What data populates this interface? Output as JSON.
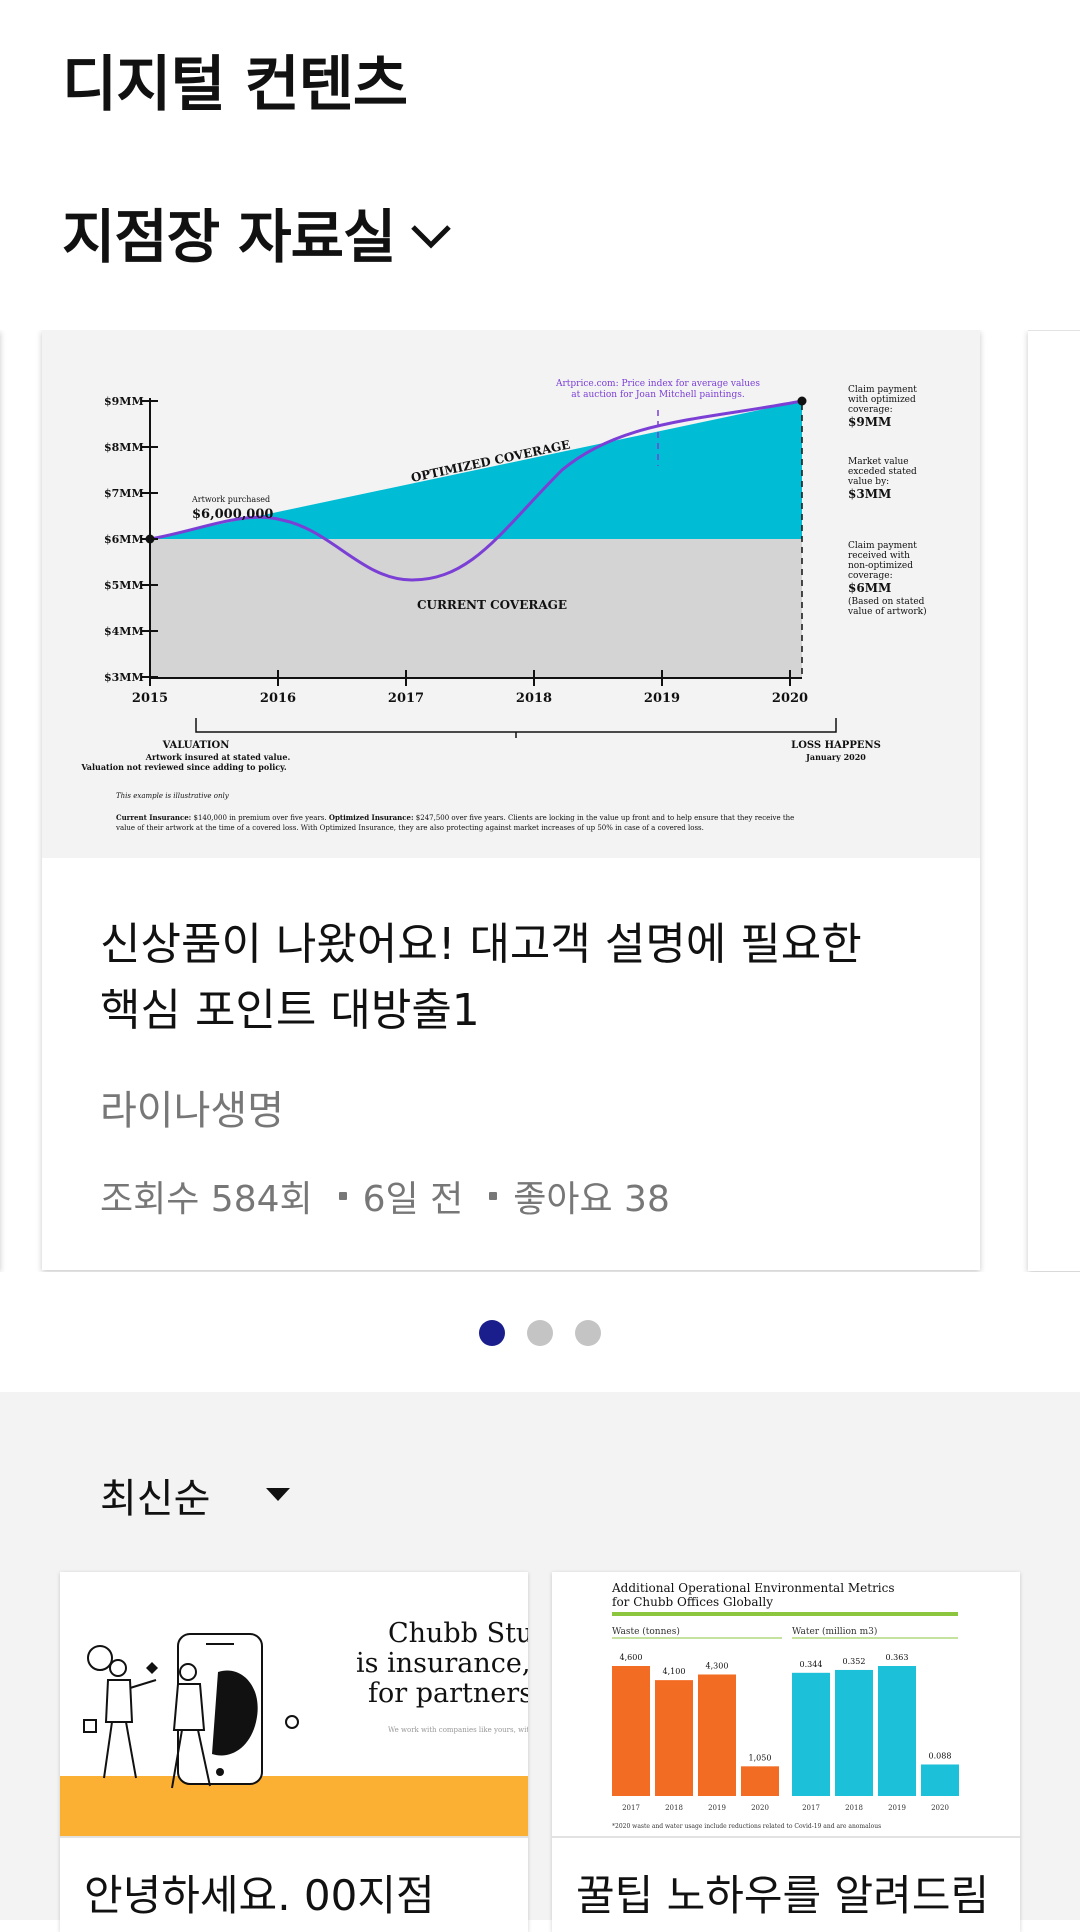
{
  "header": {
    "title": "디지털 컨텐츠"
  },
  "section": {
    "title": "지점장 자료실",
    "toggle_icon": "chevron-down-icon"
  },
  "featured": {
    "title_line1": "신상품이 나왔어요! 대고객 설명에 필요한",
    "title_line2": "핵심 포인트 대방출1",
    "org": "라이나생명",
    "views": "조회수 584회",
    "age": "6일 전",
    "likes": "좋아요 38",
    "chart": {
      "y_ticks": [
        "$9MM",
        "$8MM",
        "$7MM",
        "$6MM",
        "$5MM",
        "$4MM",
        "$3MM"
      ],
      "x_ticks": [
        "2015",
        "2016",
        "2017",
        "2018",
        "2019",
        "2020"
      ],
      "optimized_label": "OPTIMIZED COVERAGE",
      "current_label": "CURRENT COVERAGE",
      "purchase_note": "Artwork purchased",
      "purchase_value": "$6,000,000",
      "artprice_line1": "Artprice.com: Price index for average values",
      "artprice_line2": "at auction for Joan Mitchell paintings.",
      "r1_l1": "Claim payment",
      "r1_l2": "with optimized",
      "r1_l3": "coverage:",
      "r1_val": "$9MM",
      "r2_l1": "Market value",
      "r2_l2": "exceded stated",
      "r2_l3": "value by:",
      "r2_val": "$3MM",
      "r3_l1": "Claim payment",
      "r3_l2": "received with",
      "r3_l3": "non-optimized",
      "r3_l4": "coverage:",
      "r3_val": "$6MM",
      "r3_n1": "(Based on stated",
      "r3_n2": "value of artwork)",
      "valuation_title": "VALUATION",
      "valuation_l1": "Artwork insured at stated value.",
      "valuation_l2": "Valuation not reviewed since adding to policy.",
      "loss_title": "LOSS HAPPENS",
      "loss_date": "January 2020",
      "illustrative": "This example is illustrative only",
      "foot_bold1": "Current Insurance:",
      "foot_t1": " $140,000 in premium over five years. ",
      "foot_bold2": "Optimized Insurance:",
      "foot_t2": " $247,500 over five years. Clients are locking in the value up front and to help ensure that they receive the",
      "foot_line2": "value of their artwork at the time of a covered loss. With Optimized Insurance, they are also protecting against market increases of up 50% in case of a covered loss."
    }
  },
  "pagination": {
    "count": 3,
    "active_index": 0,
    "active_color": "#1a1e8c"
  },
  "sort": {
    "label": "최신순"
  },
  "grid": [
    {
      "title": "안녕하세요. 00지점",
      "thumb_line1": "Chubb Stud",
      "thumb_line2": "is insurance, r",
      "thumb_line3": "for partnersh",
      "thumb_small": "We work with companies like yours, with t"
    },
    {
      "title": "꿀팁 노하우를 알려드림",
      "thumb_title1": "Additional Operational Environmental Metrics",
      "thumb_title2": "for Chubb Offices Globally",
      "waste_label": "Waste (tonnes)",
      "water_label": "Water (million m3)",
      "waste_years": [
        "2017",
        "2018",
        "2019",
        "2020"
      ],
      "waste_values": [
        4600,
        4100,
        4300,
        1050
      ],
      "waste_value_labels": [
        "4,600",
        "4,100",
        "4,300",
        "1,050"
      ],
      "water_years": [
        "2017",
        "2018",
        "2019",
        "2020"
      ],
      "water_values": [
        0.344,
        0.352,
        0.363,
        0.088
      ],
      "water_value_labels": [
        "0.344",
        "0.352",
        "0.363",
        "0.088"
      ],
      "footnote": "*2020 waste and water usage include reductions related to Covid-19 and are anomalous"
    }
  ],
  "colors": {
    "teal": "#00bcd4",
    "purple": "#7b3fd6",
    "orange": "#f26c23",
    "cyan": "#1cc0d8",
    "yellow": "#fbb034",
    "green": "#8cc63f"
  }
}
